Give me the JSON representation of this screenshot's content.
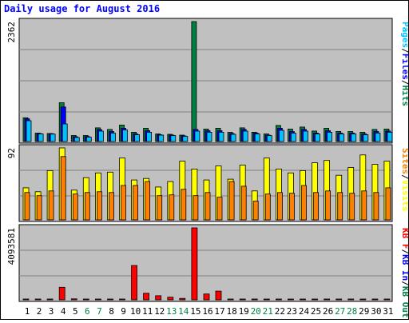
{
  "title": "Daily usage for August 2016",
  "colors": {
    "background": "#ffffff",
    "panel": "#c0c0c0",
    "title": "#0000ff",
    "hits": "#008040",
    "files": "#0000ff",
    "pages": "#00c0ff",
    "visits": "#ffff00",
    "sites": "#ff8000",
    "kb_in": "#ff0000",
    "weekend": "#008040",
    "axis_text": "#000000"
  },
  "chart_data": [
    {
      "type": "bar",
      "panel": "top",
      "max_label": "2362",
      "ylim": [
        0,
        2362
      ],
      "legend": [
        {
          "label": "Pages",
          "color": "#00c0ff"
        },
        {
          "label": "/",
          "color": "#000000"
        },
        {
          "label": "Files",
          "color": "#0000ff"
        },
        {
          "label": "/",
          "color": "#000000"
        },
        {
          "label": "Hits",
          "color": "#008040"
        }
      ],
      "series": [
        {
          "name": "Hits",
          "color": "#008040",
          "values": [
            467,
            166,
            158,
            765,
            118,
            118,
            269,
            237,
            324,
            182,
            261,
            150,
            142,
            126,
            2362,
            245,
            261,
            181,
            269,
            182,
            150,
            317,
            245,
            285,
            206,
            261,
            198,
            197,
            182,
            237,
            245
          ]
        },
        {
          "name": "Files",
          "color": "#0000ff",
          "values": [
            447,
            158,
            154,
            681,
            94,
            98,
            236,
            197,
            261,
            150,
            213,
            134,
            126,
            110,
            237,
            213,
            213,
            158,
            237,
            166,
            126,
            261,
            197,
            237,
            166,
            213,
            166,
            166,
            150,
            197,
            206
          ]
        },
        {
          "name": "Pages",
          "color": "#00c0ff",
          "values": [
            410,
            150,
            146,
            347,
            79,
            87,
            205,
            166,
            229,
            134,
            182,
            126,
            118,
            103,
            205,
            182,
            182,
            142,
            205,
            150,
            118,
            221,
            166,
            205,
            150,
            182,
            150,
            150,
            134,
            166,
            182
          ]
        }
      ]
    },
    {
      "type": "bar",
      "panel": "middle",
      "max_label": "92",
      "ylim": [
        0,
        92
      ],
      "legend": [
        {
          "label": "Sites",
          "color": "#ff8000"
        },
        {
          "label": "/",
          "color": "#000000"
        },
        {
          "label": "Visits",
          "color": "#ffff00"
        }
      ],
      "series": [
        {
          "name": "Visits",
          "color": "#ffff00",
          "values": [
            41,
            36,
            63,
            92,
            38,
            54,
            60,
            61,
            79,
            51,
            53,
            42,
            49,
            75,
            65,
            51,
            69,
            52,
            70,
            37,
            79,
            65,
            60,
            63,
            73,
            76,
            57,
            67,
            83,
            71,
            75
          ]
        },
        {
          "name": "Sites",
          "color": "#ff8000",
          "values": [
            35,
            31,
            37,
            81,
            33,
            35,
            36,
            35,
            44,
            44,
            49,
            31,
            32,
            39,
            31,
            35,
            29,
            49,
            43,
            24,
            33,
            35,
            34,
            44,
            35,
            37,
            35,
            34,
            37,
            35,
            41
          ]
        }
      ]
    },
    {
      "type": "bar",
      "panel": "bottom",
      "max_label": "4093581",
      "ylim": [
        0,
        4093581
      ],
      "legend": [
        {
          "label": "KB F",
          "color": "#ff0000"
        },
        {
          "label": "/",
          "color": "#000000"
        },
        {
          "label": "KB In",
          "color": "#0000ff"
        },
        {
          "label": "/",
          "color": "#000000"
        },
        {
          "label": "KB Out",
          "color": "#008040"
        }
      ],
      "series": [
        {
          "name": "KB F",
          "color": "#ff0000",
          "values": [
            24000,
            24000,
            24000,
            716000,
            55000,
            24000,
            24000,
            24000,
            24000,
            1950000,
            372000,
            230000,
            151000,
            80000,
            4093581,
            333000,
            497000,
            24000,
            24000,
            24000,
            24000,
            24000,
            24000,
            24000,
            24000,
            24000,
            24000,
            24000,
            24000,
            24000,
            24000
          ]
        }
      ]
    }
  ],
  "x_axis": {
    "days": [
      "1",
      "2",
      "3",
      "4",
      "5",
      "6",
      "7",
      "8",
      "9",
      "10",
      "11",
      "12",
      "13",
      "14",
      "15",
      "16",
      "17",
      "18",
      "19",
      "20",
      "21",
      "22",
      "23",
      "24",
      "25",
      "26",
      "27",
      "28",
      "29",
      "30",
      "31"
    ],
    "weekend": [
      false,
      false,
      false,
      false,
      false,
      true,
      true,
      false,
      false,
      false,
      false,
      false,
      true,
      true,
      false,
      false,
      false,
      false,
      false,
      true,
      true,
      false,
      false,
      false,
      false,
      false,
      true,
      true,
      false,
      false,
      false
    ]
  }
}
